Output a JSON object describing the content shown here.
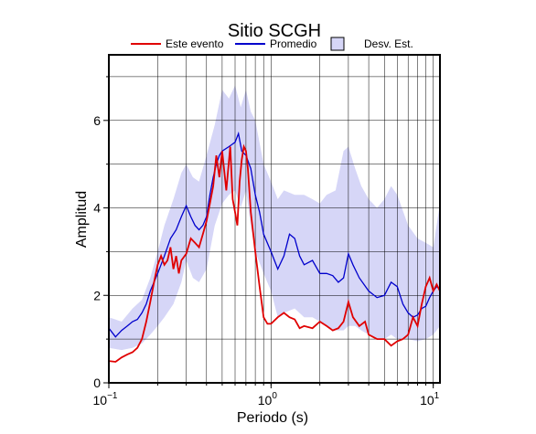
{
  "chart_data": {
    "type": "line",
    "title": "Sitio SCGH",
    "xlabel": "Periodo (s)",
    "ylabel": "Amplitud",
    "x_scale": "log",
    "xlim": [
      0.1,
      11
    ],
    "ylim": [
      0,
      7.5
    ],
    "x_ticks": [
      {
        "value": 0.1,
        "base": "10",
        "exp": "−1"
      },
      {
        "value": 1,
        "base": "10",
        "exp": "0"
      },
      {
        "value": 10,
        "base": "10",
        "exp": "1"
      }
    ],
    "y_ticks": [
      0,
      2,
      4,
      6
    ],
    "grid": true,
    "legend": {
      "placement": "top",
      "items": [
        {
          "label": "Este evento",
          "color": "#e00000",
          "kind": "line"
        },
        {
          "label": "Promedio",
          "color": "#0000cc",
          "kind": "line"
        },
        {
          "label": "Desv. Est.",
          "color": "#d6d6f7",
          "kind": "box"
        }
      ]
    },
    "series": [
      {
        "name": "Este evento",
        "color": "#e00000",
        "points": [
          [
            0.1,
            0.5
          ],
          [
            0.11,
            0.48
          ],
          [
            0.12,
            0.58
          ],
          [
            0.13,
            0.65
          ],
          [
            0.14,
            0.7
          ],
          [
            0.15,
            0.8
          ],
          [
            0.16,
            1.0
          ],
          [
            0.17,
            1.4
          ],
          [
            0.18,
            1.85
          ],
          [
            0.19,
            2.3
          ],
          [
            0.2,
            2.7
          ],
          [
            0.21,
            2.9
          ],
          [
            0.22,
            2.7
          ],
          [
            0.23,
            2.8
          ],
          [
            0.24,
            3.1
          ],
          [
            0.25,
            2.6
          ],
          [
            0.26,
            2.9
          ],
          [
            0.27,
            2.5
          ],
          [
            0.28,
            2.8
          ],
          [
            0.3,
            2.95
          ],
          [
            0.32,
            3.3
          ],
          [
            0.34,
            3.2
          ],
          [
            0.36,
            3.1
          ],
          [
            0.38,
            3.4
          ],
          [
            0.4,
            3.7
          ],
          [
            0.42,
            4.1
          ],
          [
            0.44,
            4.5
          ],
          [
            0.46,
            5.2
          ],
          [
            0.48,
            4.7
          ],
          [
            0.5,
            5.3
          ],
          [
            0.53,
            4.4
          ],
          [
            0.56,
            5.4
          ],
          [
            0.58,
            4.2
          ],
          [
            0.6,
            3.9
          ],
          [
            0.62,
            3.6
          ],
          [
            0.64,
            4.6
          ],
          [
            0.66,
            5.1
          ],
          [
            0.68,
            5.4
          ],
          [
            0.7,
            5.3
          ],
          [
            0.72,
            4.9
          ],
          [
            0.75,
            3.9
          ],
          [
            0.8,
            3.0
          ],
          [
            0.85,
            2.2
          ],
          [
            0.9,
            1.5
          ],
          [
            0.95,
            1.35
          ],
          [
            1.0,
            1.35
          ],
          [
            1.1,
            1.5
          ],
          [
            1.2,
            1.6
          ],
          [
            1.3,
            1.5
          ],
          [
            1.4,
            1.45
          ],
          [
            1.5,
            1.25
          ],
          [
            1.6,
            1.3
          ],
          [
            1.8,
            1.25
          ],
          [
            2.0,
            1.4
          ],
          [
            2.2,
            1.3
          ],
          [
            2.4,
            1.2
          ],
          [
            2.6,
            1.25
          ],
          [
            2.8,
            1.4
          ],
          [
            3.0,
            1.85
          ],
          [
            3.2,
            1.5
          ],
          [
            3.5,
            1.3
          ],
          [
            3.8,
            1.4
          ],
          [
            4.0,
            1.1
          ],
          [
            4.5,
            1.0
          ],
          [
            5.0,
            1.0
          ],
          [
            5.5,
            0.85
          ],
          [
            6.0,
            0.95
          ],
          [
            6.5,
            1.0
          ],
          [
            7.0,
            1.1
          ],
          [
            7.5,
            1.5
          ],
          [
            8.0,
            1.3
          ],
          [
            8.5,
            1.8
          ],
          [
            9.0,
            2.2
          ],
          [
            9.5,
            2.4
          ],
          [
            10.0,
            2.1
          ],
          [
            10.5,
            2.25
          ],
          [
            11.0,
            2.1
          ]
        ]
      },
      {
        "name": "Promedio",
        "color": "#0000cc",
        "points": [
          [
            0.1,
            1.25
          ],
          [
            0.11,
            1.05
          ],
          [
            0.12,
            1.2
          ],
          [
            0.13,
            1.3
          ],
          [
            0.14,
            1.4
          ],
          [
            0.15,
            1.45
          ],
          [
            0.16,
            1.6
          ],
          [
            0.17,
            1.8
          ],
          [
            0.18,
            2.1
          ],
          [
            0.2,
            2.5
          ],
          [
            0.22,
            2.9
          ],
          [
            0.24,
            3.3
          ],
          [
            0.26,
            3.5
          ],
          [
            0.28,
            3.8
          ],
          [
            0.3,
            4.05
          ],
          [
            0.32,
            3.8
          ],
          [
            0.34,
            3.6
          ],
          [
            0.36,
            3.5
          ],
          [
            0.38,
            3.6
          ],
          [
            0.4,
            3.8
          ],
          [
            0.42,
            4.3
          ],
          [
            0.44,
            4.7
          ],
          [
            0.46,
            5.0
          ],
          [
            0.48,
            5.2
          ],
          [
            0.5,
            5.3
          ],
          [
            0.55,
            5.4
          ],
          [
            0.6,
            5.5
          ],
          [
            0.63,
            5.7
          ],
          [
            0.66,
            5.3
          ],
          [
            0.7,
            5.2
          ],
          [
            0.75,
            4.9
          ],
          [
            0.8,
            4.3
          ],
          [
            0.85,
            3.9
          ],
          [
            0.9,
            3.4
          ],
          [
            1.0,
            3.0
          ],
          [
            1.1,
            2.6
          ],
          [
            1.2,
            2.9
          ],
          [
            1.3,
            3.4
          ],
          [
            1.4,
            3.3
          ],
          [
            1.5,
            2.9
          ],
          [
            1.6,
            2.7
          ],
          [
            1.8,
            2.8
          ],
          [
            2.0,
            2.5
          ],
          [
            2.2,
            2.5
          ],
          [
            2.4,
            2.45
          ],
          [
            2.6,
            2.3
          ],
          [
            2.8,
            2.4
          ],
          [
            3.0,
            2.95
          ],
          [
            3.2,
            2.7
          ],
          [
            3.5,
            2.4
          ],
          [
            4.0,
            2.1
          ],
          [
            4.5,
            1.95
          ],
          [
            5.0,
            2.0
          ],
          [
            5.5,
            2.3
          ],
          [
            6.0,
            2.2
          ],
          [
            6.5,
            1.8
          ],
          [
            7.0,
            1.6
          ],
          [
            7.5,
            1.5
          ],
          [
            8.0,
            1.55
          ],
          [
            8.5,
            1.7
          ],
          [
            9.0,
            1.75
          ],
          [
            9.5,
            1.95
          ],
          [
            10.0,
            2.1
          ],
          [
            10.5,
            2.2
          ],
          [
            11.0,
            2.15
          ]
        ]
      }
    ],
    "band": {
      "name": "Desv. Est.",
      "color": "#d6d6f7",
      "x": [
        0.1,
        0.12,
        0.14,
        0.16,
        0.18,
        0.2,
        0.22,
        0.25,
        0.28,
        0.3,
        0.33,
        0.36,
        0.4,
        0.45,
        0.5,
        0.55,
        0.6,
        0.65,
        0.7,
        0.75,
        0.8,
        0.9,
        1.0,
        1.1,
        1.2,
        1.4,
        1.6,
        1.8,
        2.0,
        2.2,
        2.5,
        2.8,
        3.0,
        3.3,
        3.6,
        4.0,
        4.5,
        5.0,
        5.5,
        6.0,
        7.0,
        8.0,
        9.0,
        10.0,
        11.0
      ],
      "upper": [
        1.5,
        1.4,
        1.7,
        1.9,
        2.4,
        3.0,
        3.6,
        4.2,
        4.8,
        5.0,
        4.7,
        4.6,
        5.2,
        5.9,
        6.7,
        6.5,
        6.8,
        6.3,
        6.7,
        6.2,
        6.0,
        5.0,
        4.6,
        4.2,
        4.4,
        4.3,
        4.3,
        4.2,
        4.1,
        4.3,
        4.4,
        5.3,
        5.4,
        4.9,
        4.5,
        4.2,
        4.0,
        4.2,
        4.5,
        4.3,
        3.6,
        3.3,
        3.2,
        3.1,
        4.1
      ],
      "lower": [
        0.8,
        0.75,
        0.8,
        0.9,
        1.1,
        1.3,
        1.5,
        1.8,
        2.3,
        2.8,
        2.4,
        2.3,
        2.6,
        3.6,
        4.1,
        4.3,
        4.4,
        4.0,
        4.4,
        3.6,
        3.0,
        2.5,
        2.1,
        1.5,
        1.6,
        1.7,
        1.5,
        1.5,
        1.4,
        1.3,
        1.2,
        1.2,
        1.3,
        1.3,
        1.2,
        1.1,
        1.0,
        1.0,
        1.1,
        1.0,
        1.0,
        0.95,
        1.0,
        1.1,
        1.3
      ]
    }
  }
}
